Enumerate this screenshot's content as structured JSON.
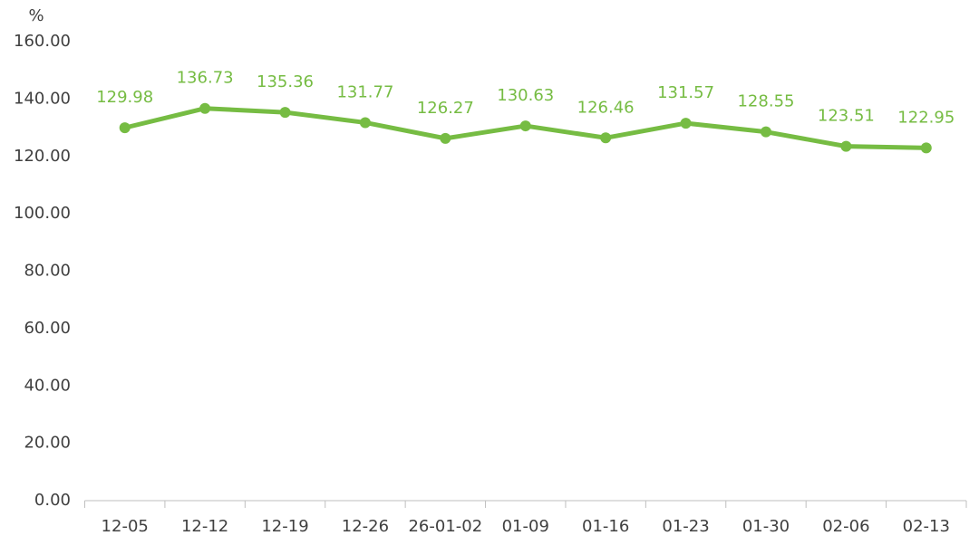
{
  "chart_data": {
    "type": "line",
    "y_label": "%",
    "categories": [
      "12-05",
      "12-12",
      "12-19",
      "12-26",
      "26-01-02",
      "01-09",
      "01-16",
      "01-23",
      "01-30",
      "02-06",
      "02-13"
    ],
    "series": [
      {
        "color": "#76bc43",
        "values": [
          129.98,
          136.73,
          135.36,
          131.77,
          126.27,
          130.63,
          126.46,
          131.57,
          128.55,
          123.51,
          122.95
        ]
      }
    ],
    "ylim": [
      0,
      160
    ],
    "yticks": [
      {
        "value": 0,
        "label": "0.00"
      },
      {
        "value": 20,
        "label": "20.00"
      },
      {
        "value": 40,
        "label": "40.00"
      },
      {
        "value": 60,
        "label": "60.00"
      },
      {
        "value": 80,
        "label": "80.00"
      },
      {
        "value": 100,
        "label": "100.00"
      },
      {
        "value": 120,
        "label": "120.00"
      },
      {
        "value": 140,
        "label": "140.00"
      },
      {
        "value": 160,
        "label": "160.00"
      }
    ],
    "grid": false
  }
}
